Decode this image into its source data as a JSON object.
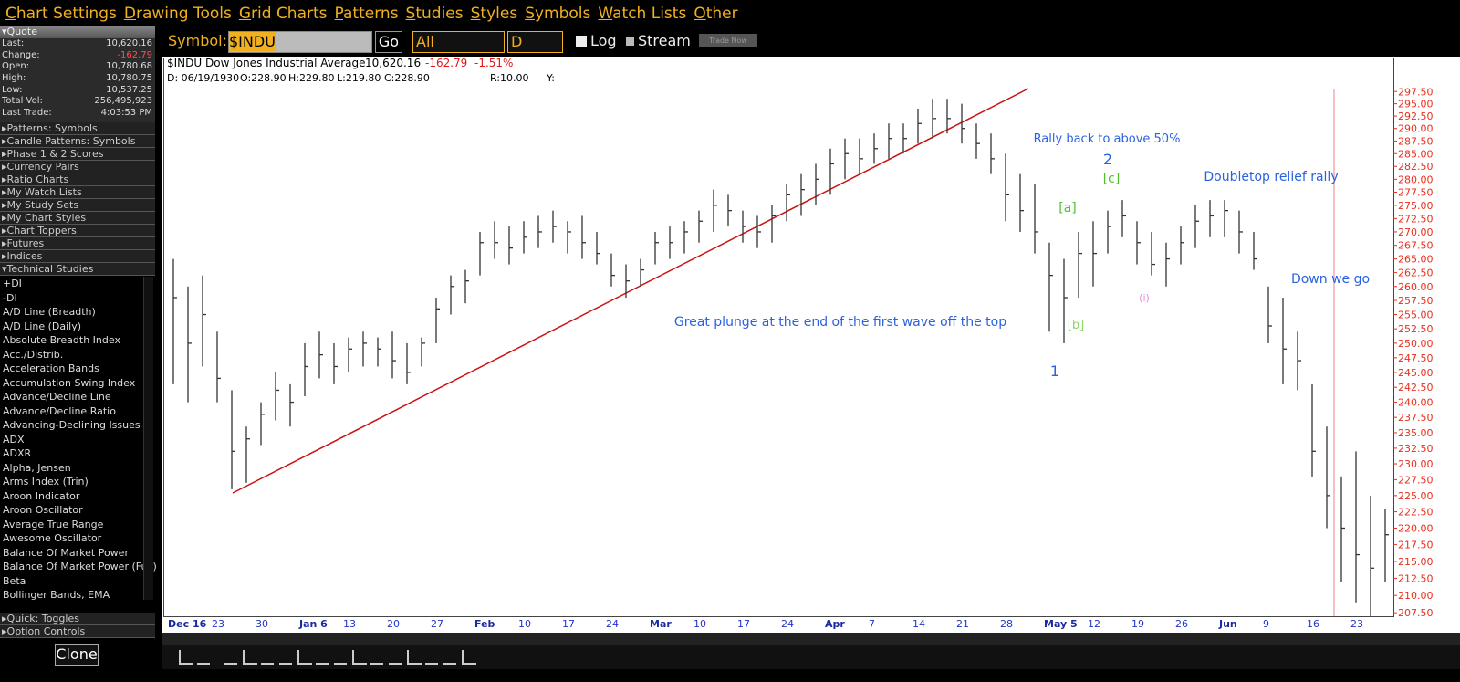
{
  "menu": [
    "Chart Settings",
    "Drawing Tools",
    "Grid Charts",
    "Patterns",
    "Studies",
    "Styles",
    "Symbols",
    "Watch Lists",
    "Other"
  ],
  "quote": {
    "title": "Quote",
    "rows": [
      [
        "Last:",
        "10,620.16"
      ],
      [
        "Change:",
        "-162.79"
      ],
      [
        "Open:",
        "10,780.68"
      ],
      [
        "High:",
        "10,780.75"
      ],
      [
        "Low:",
        "10,537.25"
      ],
      [
        "Total Vol:",
        "256,495,923"
      ],
      [
        "Last Trade:",
        "4:03:53 PM"
      ]
    ]
  },
  "sidebar": [
    "Patterns: Symbols",
    "Candle Patterns: Symbols",
    "Phase 1 & 2 Scores",
    "Currency Pairs",
    "Ratio Charts",
    "My Watch Lists",
    "My Study Sets",
    "My Chart Styles",
    "Chart Toppers",
    "Futures",
    "Indices",
    "Technical Studies"
  ],
  "studies": [
    "+DI",
    "-DI",
    "A/D Line (Breadth)",
    "A/D Line (Daily)",
    "Absolute Breadth Index",
    "Acc./Distrib.",
    "Acceleration Bands",
    "Accumulation Swing Index",
    "Advance/Decline Line",
    "Advance/Decline Ratio",
    "Advancing-Declining Issues",
    "ADX",
    "ADXR",
    "Alpha, Jensen",
    "Arms Index (Trin)",
    "Aroon Indicator",
    "Aroon Oscillator",
    "Average True Range",
    "Awesome Oscillator",
    "Balance Of Market Power",
    "Balance Of Market Power (Full)",
    "Beta",
    "Bollinger Bands, EMA"
  ],
  "bottom_left": [
    "Quick: Toggles",
    "Option Controls",
    "Clone"
  ],
  "toolbar": {
    "symbol_label": "Symbol:",
    "symbol": "$INDU",
    "go": "Go",
    "range": "All",
    "period": "D",
    "log": "Log",
    "stream": "Stream",
    "trade": "Trade Now"
  },
  "header": {
    "name": "$INDU Dow Jones Industrial Average",
    "last": "10,620.16",
    "change": "-162.79",
    "pct": "-1.51%",
    "date": "D: 06/19/1930",
    "open": "O:228.90",
    "high": "H:229.80",
    "low": "L:219.80",
    "close": "C:228.90",
    "r": "R:10.00",
    "y": "Y:"
  },
  "chart_data": {
    "type": "ohlc",
    "color": "#333333",
    "log_scale": true,
    "grid": false,
    "categories": [
      "Dec 16",
      null,
      null,
      "23",
      null,
      null,
      "30",
      null,
      null,
      "Jan 6",
      null,
      null,
      "13",
      null,
      null,
      "20",
      null,
      null,
      "27",
      null,
      null,
      "Feb",
      null,
      null,
      "10",
      null,
      null,
      "17",
      null,
      null,
      "24",
      null,
      null,
      "Mar",
      null,
      null,
      "10",
      null,
      null,
      "17",
      null,
      null,
      "24",
      null,
      null,
      "Apr",
      null,
      null,
      "7",
      null,
      null,
      "14",
      null,
      null,
      "21",
      null,
      null,
      "28",
      null,
      null,
      "May 5",
      null,
      null,
      "12",
      null,
      null,
      "19",
      null,
      null,
      "26",
      null,
      null,
      "Jun",
      null,
      null,
      "9",
      null,
      null,
      "16",
      null,
      null,
      "23",
      null,
      null
    ],
    "high": [
      265,
      260,
      262,
      252,
      242,
      236,
      240,
      245,
      243,
      250,
      252,
      250,
      251,
      252,
      251,
      252,
      250,
      251,
      258,
      262,
      263,
      270,
      272,
      271,
      272,
      273,
      274,
      272,
      273,
      270,
      266,
      264,
      265,
      270,
      271,
      272,
      274,
      278,
      277,
      274,
      273,
      275,
      279,
      281,
      283,
      286,
      288,
      288,
      289,
      291,
      291,
      294,
      296,
      296,
      295,
      291,
      289,
      285,
      281,
      279,
      268,
      265,
      270,
      272,
      274,
      276,
      272,
      270,
      268,
      271,
      275,
      276,
      276,
      274,
      270,
      260,
      258,
      252,
      243,
      236,
      228,
      232,
      225,
      223
    ],
    "low": [
      243,
      240,
      246,
      240,
      226,
      227,
      233,
      237,
      236,
      241,
      244,
      243,
      245,
      246,
      246,
      244,
      243,
      246,
      250,
      255,
      257,
      262,
      265,
      264,
      266,
      267,
      268,
      266,
      265,
      264,
      260,
      258,
      260,
      264,
      265,
      266,
      268,
      270,
      271,
      268,
      267,
      268,
      272,
      273,
      275,
      277,
      280,
      281,
      283,
      284,
      285,
      287,
      288,
      289,
      287,
      284,
      281,
      272,
      270,
      266,
      252,
      250,
      258,
      260,
      266,
      269,
      264,
      262,
      260,
      264,
      267,
      269,
      269,
      266,
      263,
      250,
      243,
      242,
      228,
      220,
      212,
      209,
      207,
      212
    ],
    "close": [
      258,
      250,
      255,
      244,
      232,
      234,
      238,
      242,
      240,
      246,
      248,
      246,
      249,
      250,
      249,
      247,
      245,
      250,
      256,
      260,
      261,
      268,
      268,
      267,
      269,
      270,
      271,
      270,
      268,
      266,
      262,
      261,
      263,
      268,
      268,
      270,
      272,
      275,
      274,
      271,
      270,
      273,
      277,
      278,
      280,
      283,
      285,
      284,
      286,
      288,
      288,
      291,
      292,
      292,
      290,
      287,
      284,
      277,
      274,
      270,
      262,
      258,
      266,
      266,
      271,
      273,
      268,
      264,
      265,
      268,
      272,
      273,
      274,
      270,
      265,
      253,
      249,
      247,
      232,
      225,
      220,
      216,
      214,
      219
    ],
    "ylim": [
      207,
      304
    ],
    "yticks": [
      {
        "value": 207.5,
        "label": "207.50"
      },
      {
        "value": 210,
        "label": "210.00"
      },
      {
        "value": 212.5,
        "label": "212.50"
      },
      {
        "value": 215,
        "label": "215.00"
      },
      {
        "value": 217.5,
        "label": "217.50"
      },
      {
        "value": 220,
        "label": "220.00"
      },
      {
        "value": 222.5,
        "label": "222.50"
      },
      {
        "value": 225,
        "label": "225.00"
      },
      {
        "value": 227.5,
        "label": "227.50"
      },
      {
        "value": 230,
        "label": "230.00"
      },
      {
        "value": 232.5,
        "label": "232.50"
      },
      {
        "value": 235,
        "label": "235.00"
      },
      {
        "value": 237.5,
        "label": "237.50"
      },
      {
        "value": 240,
        "label": "240.00"
      },
      {
        "value": 242.5,
        "label": "242.50"
      },
      {
        "value": 245,
        "label": "245.00"
      },
      {
        "value": 247.5,
        "label": "247.50"
      },
      {
        "value": 250,
        "label": "250.00"
      },
      {
        "value": 252.5,
        "label": "252.50"
      },
      {
        "value": 255,
        "label": "255.00"
      },
      {
        "value": 257.5,
        "label": "257.50"
      },
      {
        "value": 260,
        "label": "260.00"
      },
      {
        "value": 262.5,
        "label": "262.50"
      },
      {
        "value": 265,
        "label": "265.00"
      },
      {
        "value": 267.5,
        "label": "267.50"
      },
      {
        "value": 270,
        "label": "270.00"
      },
      {
        "value": 272.5,
        "label": "272.50"
      },
      {
        "value": 275,
        "label": "275.00"
      },
      {
        "value": 277.5,
        "label": "277.50"
      },
      {
        "value": 280,
        "label": "280.00"
      },
      {
        "value": 282.5,
        "label": "282.50"
      },
      {
        "value": 285,
        "label": "285.00"
      },
      {
        "value": 287.5,
        "label": "287.50"
      },
      {
        "value": 290,
        "label": "290.00"
      },
      {
        "value": 292.5,
        "label": "292.50"
      },
      {
        "value": 295,
        "label": "295.00"
      },
      {
        "value": 297.5,
        "label": "297.50"
      }
    ],
    "annotations": [
      {
        "text": "Rally back to above 50%",
        "color": "#2a62e0"
      },
      {
        "text": "2",
        "color": "#2a62e0"
      },
      {
        "text": "[c]",
        "color": "#4fc22a"
      },
      {
        "text": "[a]",
        "color": "#4fc22a"
      },
      {
        "text": "[b]",
        "color": "#8fd86a"
      },
      {
        "text": "1",
        "color": "#2a62e0"
      },
      {
        "text": "(i)",
        "color": "#e08ad8"
      },
      {
        "text": "Great plunge at the end of the first wave off the top",
        "color": "#2a62e0"
      },
      {
        "text": "Doubletop relief rally",
        "color": "#2a62e0"
      },
      {
        "text": "Down we go",
        "color": "#2a62e0"
      }
    ]
  }
}
